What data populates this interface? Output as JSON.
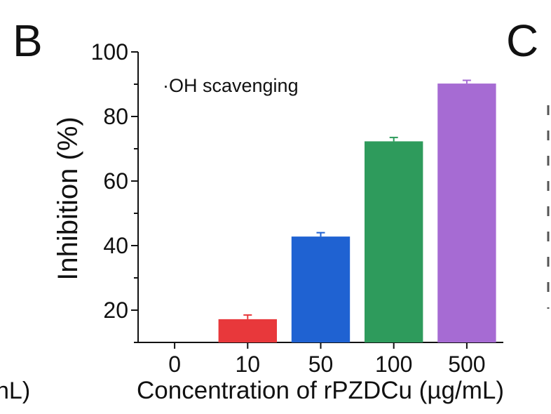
{
  "panels": {
    "main_label": "B",
    "next_label": "C",
    "prev_axis_fragment": "nL)"
  },
  "chart_data": {
    "type": "bar",
    "title": "",
    "annotation": "·OH scavenging",
    "xlabel": "Concentration of rPZDCu (µg/mL)",
    "ylabel": "Inhibition (%)",
    "categories": [
      "0",
      "10",
      "50",
      "100",
      "500"
    ],
    "values": [
      0,
      17.2,
      42.8,
      72.3,
      90.2
    ],
    "errors": [
      0,
      1.3,
      1.2,
      1.2,
      1.0
    ],
    "colors": [
      "#cccccc",
      "#e8383b",
      "#1f62d2",
      "#2e9b5c",
      "#a66bd3"
    ],
    "ylim": [
      10,
      100
    ],
    "yticks": [
      20,
      40,
      60,
      80,
      100
    ],
    "grid": false
  }
}
